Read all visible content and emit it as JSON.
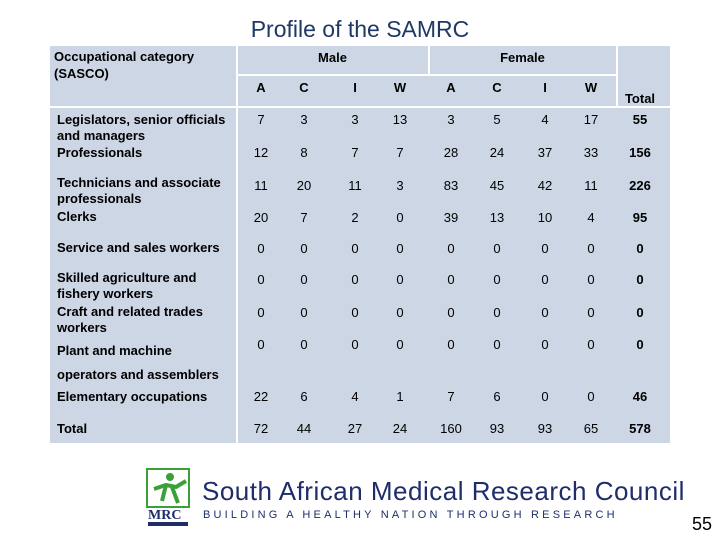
{
  "title": "Profile of the SAMRC",
  "header": {
    "category": "Occupational category (SASCO)",
    "male": "Male",
    "female": "Female",
    "total": "Total",
    "columns": [
      "A",
      "C",
      "I",
      "W",
      "A",
      "C",
      "I",
      "W"
    ]
  },
  "rows": [
    {
      "label": "Legislators, senior officials and managers",
      "values": [
        "7",
        "3",
        "3",
        "13",
        "3",
        "5",
        "4",
        "17"
      ],
      "total": "55"
    },
    {
      "label": "Professionals",
      "values": [
        "12",
        "8",
        "7",
        "7",
        "28",
        "24",
        "37",
        "33"
      ],
      "total": "156"
    },
    {
      "label": "Technicians and associate professionals",
      "values": [
        "11",
        "20",
        "11",
        "3",
        "83",
        "45",
        "42",
        "11"
      ],
      "total": "226"
    },
    {
      "label": "Clerks",
      "values": [
        "20",
        "7",
        "2",
        "0",
        "39",
        "13",
        "10",
        "4"
      ],
      "total": "95"
    },
    {
      "label": "Service and sales workers",
      "values": [
        "0",
        "0",
        "0",
        "0",
        "0",
        "0",
        "0",
        "0"
      ],
      "total": "0"
    },
    {
      "label": "Skilled agriculture and fishery workers",
      "values": [
        "0",
        "0",
        "0",
        "0",
        "0",
        "0",
        "0",
        "0"
      ],
      "total": "0"
    },
    {
      "label": "Craft and related trades workers",
      "values": [
        "0",
        "0",
        "0",
        "0",
        "0",
        "0",
        "0",
        "0"
      ],
      "total": "0"
    },
    {
      "label": "Plant and machine",
      "label2": "operators and assemblers",
      "values": [
        "0",
        "0",
        "0",
        "0",
        "0",
        "0",
        "0",
        "0"
      ],
      "total": "0"
    },
    {
      "label": "Elementary occupations",
      "values": [
        "22",
        "6",
        "4",
        "1",
        "7",
        "6",
        "0",
        "0"
      ],
      "total": "46"
    },
    {
      "label": "Total",
      "values": [
        "72",
        "44",
        "27",
        "24",
        "160",
        "93",
        "93",
        "65"
      ],
      "total": "578"
    }
  ],
  "footer": {
    "logo_text": "MRC",
    "council": "South African Medical Research Council",
    "tagline": "BUILDING A HEALTHY NATION THROUGH RESEARCH",
    "page_number": "55"
  },
  "colors": {
    "title": "#1f3864",
    "table_bg": "#ccd6e4",
    "logo_green": "#3aa13a",
    "brand": "#1f2d6b"
  }
}
